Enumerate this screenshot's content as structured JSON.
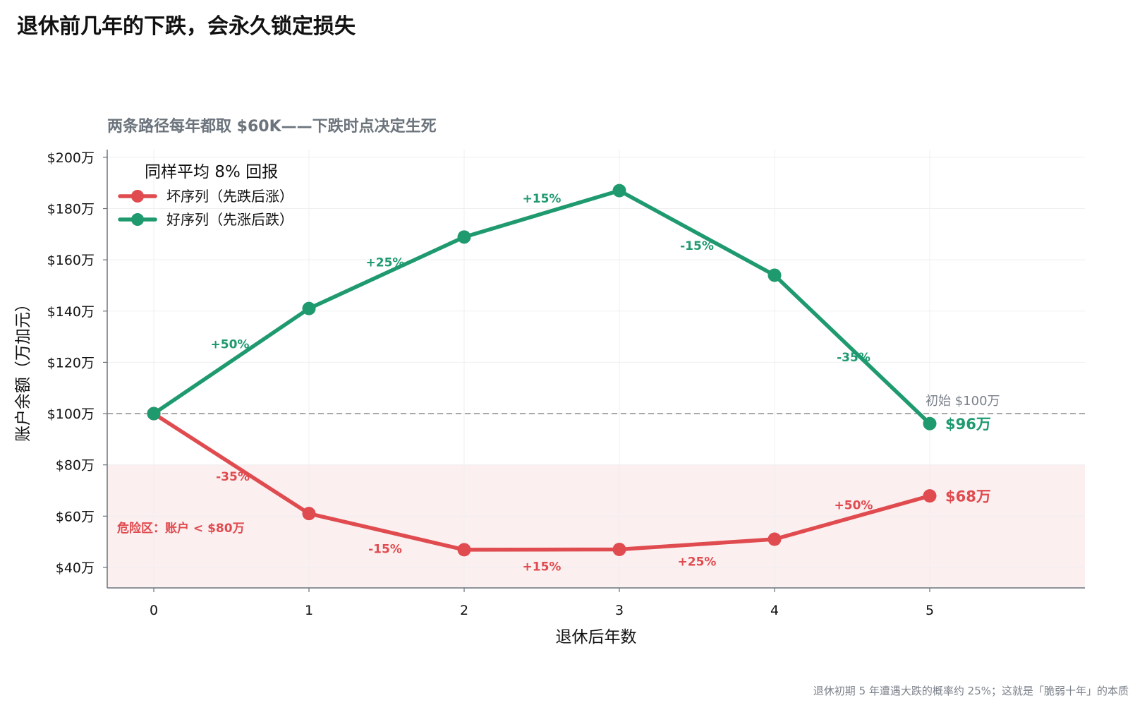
{
  "title": "退休前几年的下跌，会永久锁定损失",
  "footnote": "退休初期 5 年遭遇大跌的概率约 25%；这就是「脆弱十年」的本质",
  "colors": {
    "bad": "#e04b4f",
    "good": "#1f9a6e",
    "danger_fill": "#fbeff0",
    "reference": "#a8a8a8",
    "axis": "#6b737c"
  },
  "chart_data": {
    "type": "line",
    "title": "两条路径每年都取 $60K——下跌时点决定生死",
    "xlabel": "退休后年数",
    "ylabel": "账户余额（万加元）",
    "x": [
      0,
      1,
      2,
      3,
      4,
      5
    ],
    "x_tick_labels": [
      "0",
      "1",
      "2",
      "3",
      "4",
      "5"
    ],
    "xlim": [
      -0.3,
      6.0
    ],
    "ylim": [
      32,
      203
    ],
    "y_ticks": [
      40,
      60,
      80,
      100,
      120,
      140,
      160,
      180,
      200
    ],
    "y_tick_labels": [
      "$40万",
      "$60万",
      "$80万",
      "$100万",
      "$120万",
      "$140万",
      "$160万",
      "$180万",
      "$200万"
    ],
    "grid": true,
    "legend": {
      "title": "同样平均 8% 回报",
      "placement": "top-left"
    },
    "series": [
      {
        "name": "坏序列（先跌后涨）",
        "color": "#e04b4f",
        "values": [
          100,
          61,
          46.9,
          47,
          51,
          67.9
        ],
        "segment_labels": [
          "-35%",
          "-15%",
          "+15%",
          "+25%",
          "+50%"
        ],
        "end_label": "$68万"
      },
      {
        "name": "好序列（先涨后跌）",
        "color": "#1f9a6e",
        "values": [
          100,
          141,
          168.9,
          187,
          154,
          96.1
        ],
        "segment_labels": [
          "+50%",
          "+25%",
          "+15%",
          "-15%",
          "-35%"
        ],
        "end_label": "$96万"
      }
    ],
    "reference_line": {
      "y": 100,
      "label": "初始 $100万"
    },
    "danger_zone": {
      "y_max": 80,
      "label": "危险区：账户 < $80万"
    }
  }
}
